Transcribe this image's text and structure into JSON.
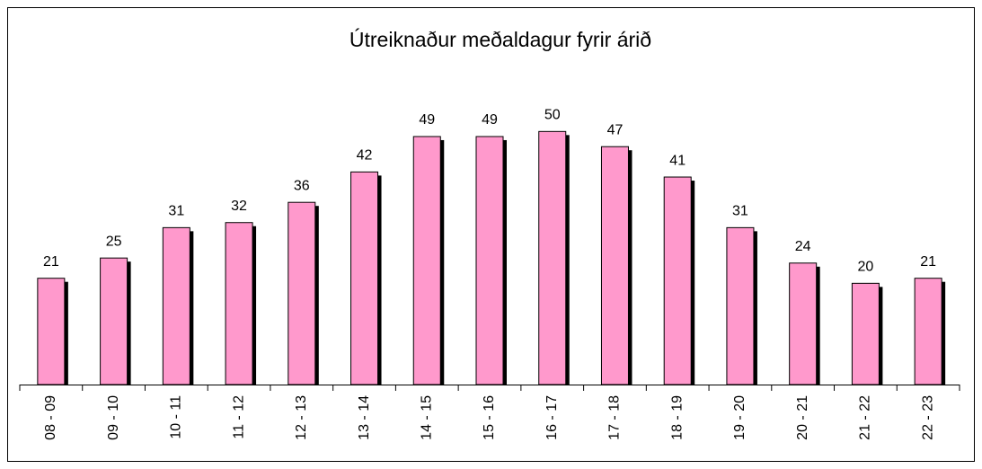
{
  "chart_data": {
    "type": "bar",
    "title": "Útreiknaður meðaldagur fyrir árið",
    "categories": [
      "08 - 09",
      "09 - 10",
      "10 - 11",
      "11 - 12",
      "12 - 13",
      "13 - 14",
      "14 - 15",
      "15 - 16",
      "16 - 17",
      "17 - 18",
      "18 - 19",
      "19 - 20",
      "20 - 21",
      "21 - 22",
      "22 - 23"
    ],
    "values": [
      21,
      25,
      31,
      32,
      36,
      42,
      49,
      49,
      50,
      47,
      41,
      31,
      24,
      20,
      21
    ],
    "color": "#ff99cc",
    "ylim": [
      0,
      60
    ]
  }
}
